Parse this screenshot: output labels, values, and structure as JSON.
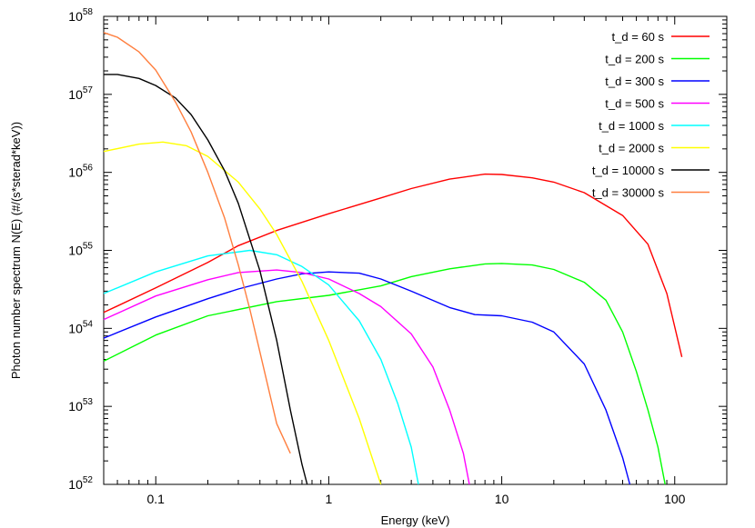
{
  "chart_data": {
    "type": "line",
    "title": "",
    "xlabel": "Energy (keV)",
    "ylabel": "Photon number spectrum N(E) (#/(s*sterad*keV))",
    "x_scale": "log",
    "y_scale": "log",
    "xlim": [
      0.05,
      200
    ],
    "ylim": [
      1e+52,
      1e+58
    ],
    "x_ticks": [
      {
        "value": 0.1,
        "label": "0.1"
      },
      {
        "value": 1,
        "label": "1"
      },
      {
        "value": 10,
        "label": "10"
      },
      {
        "value": 100,
        "label": "100"
      }
    ],
    "y_ticks": [
      {
        "value": 1e+52,
        "base": "10",
        "exp": "52"
      },
      {
        "value": 1e+53,
        "base": "10",
        "exp": "53"
      },
      {
        "value": 1e+54,
        "base": "10",
        "exp": "54"
      },
      {
        "value": 1e+55,
        "base": "10",
        "exp": "55"
      },
      {
        "value": 1e+56,
        "base": "10",
        "exp": "56"
      },
      {
        "value": 1e+57,
        "base": "10",
        "exp": "57"
      },
      {
        "value": 1e+58,
        "base": "10",
        "exp": "58"
      }
    ],
    "grid": false,
    "legend_position": "top-right",
    "series": [
      {
        "name": "t_d = 60 s",
        "color": "#ff0000",
        "x": [
          0.05,
          0.1,
          0.2,
          0.3,
          0.5,
          1,
          2,
          3,
          5,
          8,
          10,
          15,
          20,
          30,
          50,
          70,
          90,
          110
        ],
        "y": [
          1.6e+54,
          3.3e+54,
          7e+54,
          1.15e+55,
          1.8e+55,
          2.95e+55,
          4.7e+55,
          6.2e+55,
          8.2e+55,
          9.5e+55,
          9.4e+55,
          8.5e+55,
          7.5e+55,
          5.5e+55,
          2.8e+55,
          1.2e+55,
          2.8e+54,
          4.3e+53
        ]
      },
      {
        "name": "t_d = 200 s",
        "color": "#00ff00",
        "x": [
          0.05,
          0.1,
          0.2,
          0.5,
          1,
          2,
          3,
          5,
          8,
          10,
          15,
          20,
          30,
          40,
          50,
          60,
          70,
          80,
          88
        ],
        "y": [
          3.8e+53,
          8.2e+53,
          1.45e+54,
          2.2e+54,
          2.65e+54,
          3.5e+54,
          4.6e+54,
          5.8e+54,
          6.7e+54,
          6.8e+54,
          6.5e+54,
          5.7e+54,
          3.9e+54,
          2.3e+54,
          9e+53,
          2.8e+53,
          9e+52,
          3e+52,
          1e+52
        ]
      },
      {
        "name": "t_d = 300 s",
        "color": "#0000ff",
        "x": [
          0.05,
          0.1,
          0.2,
          0.3,
          0.5,
          0.7,
          1,
          1.5,
          2,
          3,
          5,
          7,
          10,
          15,
          20,
          30,
          40,
          50,
          55
        ],
        "y": [
          7.5e+53,
          1.4e+54,
          2.4e+54,
          3.2e+54,
          4.3e+54,
          5e+54,
          5.3e+54,
          5.1e+54,
          4.3e+54,
          3e+54,
          1.85e+54,
          1.5e+54,
          1.45e+54,
          1.2e+54,
          9e+53,
          3.5e+53,
          9e+52,
          2.2e+52,
          1e+52
        ]
      },
      {
        "name": "t_d = 500 s",
        "color": "#ff00ff",
        "x": [
          0.05,
          0.1,
          0.2,
          0.3,
          0.5,
          0.7,
          1,
          1.5,
          2,
          3,
          4,
          5,
          6,
          6.5
        ],
        "y": [
          1.3e+54,
          2.6e+54,
          4.2e+54,
          5.2e+54,
          5.6e+54,
          5.2e+54,
          4.3e+54,
          2.8e+54,
          1.9e+54,
          8.5e+53,
          3.2e+53,
          9e+52,
          2.5e+52,
          1e+52
        ]
      },
      {
        "name": "t_d = 1000 s",
        "color": "#00ffff",
        "x": [
          0.05,
          0.1,
          0.2,
          0.35,
          0.5,
          0.7,
          1,
          1.5,
          2,
          2.5,
          3,
          3.3
        ],
        "y": [
          2.8e+54,
          5.3e+54,
          8.5e+54,
          1e+55,
          8.8e+54,
          6.2e+54,
          3.6e+54,
          1.25e+54,
          4e+53,
          1.1e+53,
          3e+52,
          1e+52
        ]
      },
      {
        "name": "t_d = 2000 s",
        "color": "#ffff00",
        "x": [
          0.05,
          0.08,
          0.11,
          0.15,
          0.2,
          0.3,
          0.4,
          0.5,
          0.7,
          1,
          1.5,
          2
        ],
        "y": [
          1.85e+56,
          2.3e+56,
          2.45e+56,
          2.2e+56,
          1.6e+56,
          7.5e+55,
          3.4e+55,
          1.6e+55,
          4e+54,
          7e+53,
          7e+52,
          1e+52
        ]
      },
      {
        "name": "t_d = 10000 s",
        "color": "#000000",
        "x": [
          0.05,
          0.06,
          0.08,
          0.1,
          0.13,
          0.16,
          0.2,
          0.25,
          0.3,
          0.4,
          0.5,
          0.6,
          0.7,
          0.75
        ],
        "y": [
          1.8e+57,
          1.8e+57,
          1.6e+57,
          1.3e+57,
          9e+56,
          5.5e+56,
          2.6e+56,
          1.05e+56,
          4e+55,
          5.5e+54,
          7e+53,
          9e+52,
          1.8e+52,
          1e+52
        ]
      },
      {
        "name": "t_d = 30000 s",
        "color": "#ff7f3f",
        "x": [
          0.05,
          0.06,
          0.08,
          0.1,
          0.13,
          0.16,
          0.2,
          0.25,
          0.3,
          0.35,
          0.4,
          0.5,
          0.6
        ],
        "y": [
          6.2e+57,
          5.4e+57,
          3.5e+57,
          2.05e+57,
          8e+56,
          3.3e+56,
          1e+56,
          2.6e+55,
          6.5e+54,
          1.75e+54,
          5e+53,
          6e+52,
          2.5e+52
        ]
      }
    ]
  }
}
